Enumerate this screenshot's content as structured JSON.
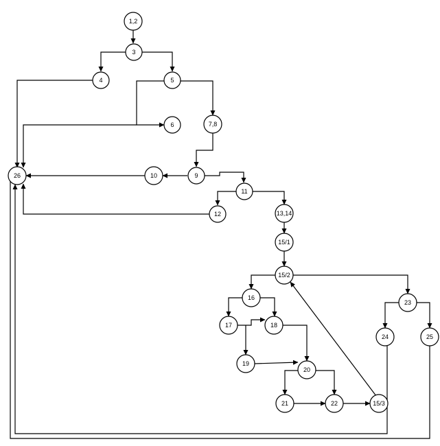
{
  "diagram": {
    "type": "control-flow-graph",
    "nodes": [
      {
        "id": "n1_2",
        "label": "1,2"
      },
      {
        "id": "n3",
        "label": "3"
      },
      {
        "id": "n4",
        "label": "4"
      },
      {
        "id": "n5",
        "label": "5"
      },
      {
        "id": "n6",
        "label": "6"
      },
      {
        "id": "n7_8",
        "label": "7,8"
      },
      {
        "id": "n9",
        "label": "9"
      },
      {
        "id": "n10",
        "label": "10"
      },
      {
        "id": "n11",
        "label": "11"
      },
      {
        "id": "n12",
        "label": "12"
      },
      {
        "id": "n13_14",
        "label": "13,14"
      },
      {
        "id": "n15_1",
        "label": "15/1"
      },
      {
        "id": "n15_2",
        "label": "15/2"
      },
      {
        "id": "n16",
        "label": "16"
      },
      {
        "id": "n17",
        "label": "17"
      },
      {
        "id": "n18",
        "label": "18"
      },
      {
        "id": "n19",
        "label": "19"
      },
      {
        "id": "n20",
        "label": "20"
      },
      {
        "id": "n21",
        "label": "21"
      },
      {
        "id": "n22",
        "label": "22"
      },
      {
        "id": "n15_3",
        "label": "15/3"
      },
      {
        "id": "n23",
        "label": "23"
      },
      {
        "id": "n24",
        "label": "24"
      },
      {
        "id": "n25",
        "label": "25"
      },
      {
        "id": "n26",
        "label": "26"
      }
    ],
    "edges": [
      {
        "from": "1,2",
        "to": "3"
      },
      {
        "from": "3",
        "to": "4"
      },
      {
        "from": "3",
        "to": "5"
      },
      {
        "from": "4",
        "to": "26"
      },
      {
        "from": "5",
        "to": "6"
      },
      {
        "from": "5",
        "to": "7,8"
      },
      {
        "from": "6",
        "to": "26"
      },
      {
        "from": "7,8",
        "to": "9"
      },
      {
        "from": "9",
        "to": "10"
      },
      {
        "from": "9",
        "to": "11"
      },
      {
        "from": "10",
        "to": "26"
      },
      {
        "from": "11",
        "to": "12"
      },
      {
        "from": "11",
        "to": "13,14"
      },
      {
        "from": "12",
        "to": "26"
      },
      {
        "from": "13,14",
        "to": "15/1"
      },
      {
        "from": "15/1",
        "to": "15/2"
      },
      {
        "from": "15/2",
        "to": "16"
      },
      {
        "from": "15/2",
        "to": "23"
      },
      {
        "from": "16",
        "to": "17"
      },
      {
        "from": "16",
        "to": "18"
      },
      {
        "from": "17",
        "to": "18"
      },
      {
        "from": "17",
        "to": "19"
      },
      {
        "from": "18",
        "to": "20"
      },
      {
        "from": "19",
        "to": "20"
      },
      {
        "from": "20",
        "to": "21"
      },
      {
        "from": "20",
        "to": "22"
      },
      {
        "from": "21",
        "to": "22"
      },
      {
        "from": "22",
        "to": "15/3"
      },
      {
        "from": "15/3",
        "to": "15/2"
      },
      {
        "from": "23",
        "to": "24"
      },
      {
        "from": "23",
        "to": "25"
      },
      {
        "from": "24",
        "to": "26"
      },
      {
        "from": "25",
        "to": "26"
      }
    ]
  }
}
